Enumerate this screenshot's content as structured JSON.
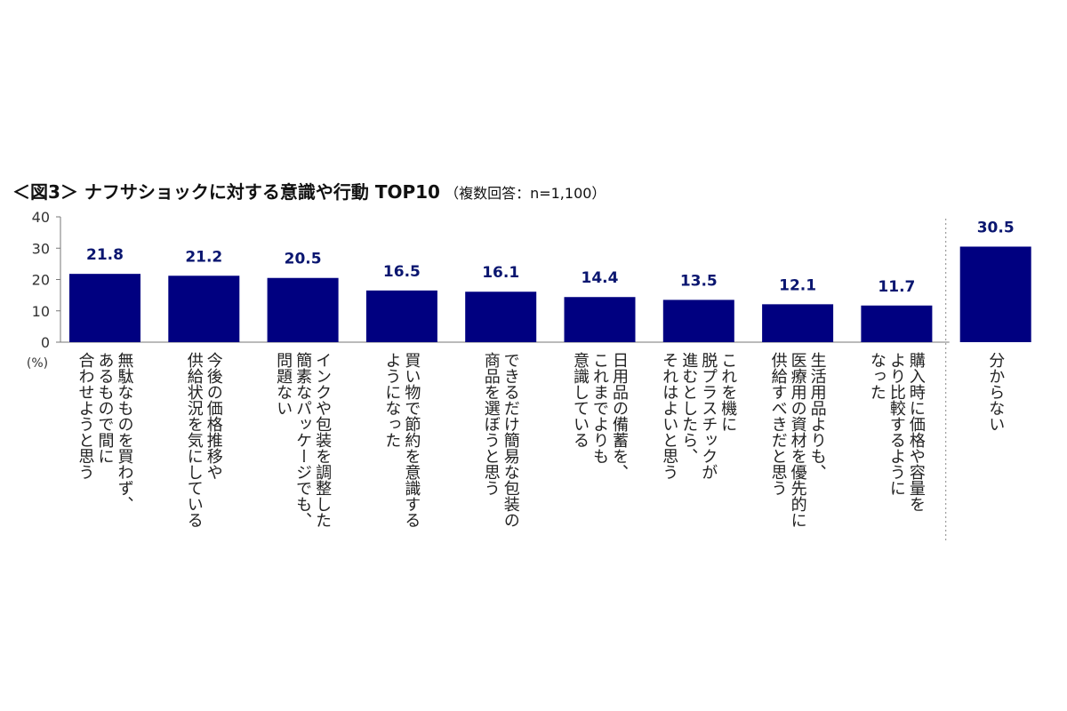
{
  "title": "＜図3＞ ナフサショックに対する意識や行動 TOP10",
  "subtitle": "（複数回答：n=1,100）",
  "chart_data": {
    "type": "bar",
    "title": "＜図3＞ ナフサショックに対する意識や行動 TOP10",
    "subtitle": "（複数回答：n=1,100）",
    "ylabel": "(%)",
    "ylim": [
      0,
      40
    ],
    "yticks": [
      0,
      10,
      20,
      30,
      40
    ],
    "grid": false,
    "bar_color": "#000080",
    "label_color": "#0a1670",
    "categories": [
      [
        "無駄なものを買わず、",
        "あるもので間に",
        "合わせようと思う"
      ],
      [
        "今後の価格推移や",
        "供給状況を気にしている"
      ],
      [
        "インクや包装を調整した",
        "簡素なパッケージでも、",
        "問題ない"
      ],
      [
        "買い物で節約を意識する",
        "ようになった"
      ],
      [
        "できるだけ簡易な包装の",
        "商品を選ぼうと思う"
      ],
      [
        "日用品の備蓄を、",
        "これまでよりも",
        "意識している"
      ],
      [
        "これを機に",
        "脱プラスチックが",
        "進むとしたら、",
        "それはよいと思う"
      ],
      [
        "生活用品よりも、",
        "医療用の資材を優先的に",
        "供給すべきだと思う"
      ],
      [
        "購入時に価格や容量を",
        "より比較するように",
        "なった"
      ],
      [
        "分からない"
      ]
    ],
    "values": [
      21.8,
      21.2,
      20.5,
      16.5,
      16.1,
      14.4,
      13.5,
      12.1,
      11.7,
      30.5
    ],
    "value_labels": [
      "21.8",
      "21.2",
      "20.5",
      "16.5",
      "16.1",
      "14.4",
      "13.5",
      "12.1",
      "11.7",
      "30.5"
    ],
    "separator_before_last": true
  }
}
